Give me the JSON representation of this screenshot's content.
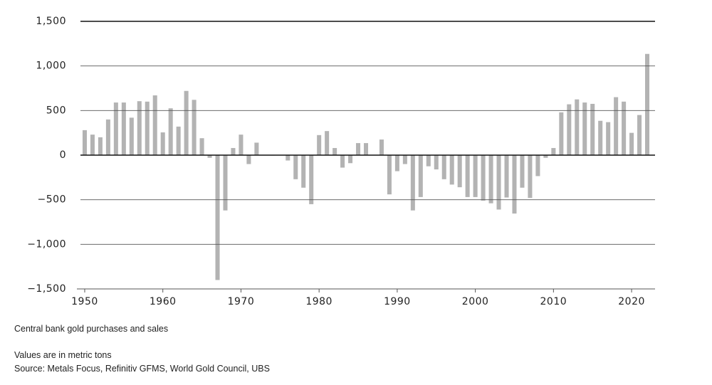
{
  "chart_data": {
    "type": "bar",
    "subtitle": "Central bank gold purchases and sales",
    "note": "Values are in metric tons",
    "source": "Source: Metals Focus, Refinitiv GFMS, World Gold Council, UBS",
    "color": "#b3b3b3",
    "x": [
      1950,
      1951,
      1952,
      1953,
      1954,
      1955,
      1956,
      1957,
      1958,
      1959,
      1960,
      1961,
      1962,
      1963,
      1964,
      1965,
      1966,
      1967,
      1968,
      1969,
      1970,
      1971,
      1972,
      1973,
      1974,
      1975,
      1976,
      1977,
      1978,
      1979,
      1980,
      1981,
      1982,
      1983,
      1984,
      1985,
      1986,
      1987,
      1988,
      1989,
      1990,
      1991,
      1992,
      1993,
      1994,
      1995,
      1996,
      1997,
      1998,
      1999,
      2000,
      2001,
      2002,
      2003,
      2004,
      2005,
      2006,
      2007,
      2008,
      2009,
      2010,
      2011,
      2012,
      2013,
      2014,
      2015,
      2016,
      2017,
      2018,
      2019,
      2020,
      2021,
      2022
    ],
    "values": [
      280,
      230,
      200,
      400,
      590,
      590,
      420,
      605,
      600,
      670,
      255,
      525,
      320,
      720,
      620,
      190,
      -30,
      -1400,
      -620,
      80,
      230,
      -100,
      140,
      0,
      -5,
      0,
      -60,
      -270,
      -365,
      -550,
      225,
      270,
      80,
      -140,
      -90,
      135,
      135,
      0,
      175,
      -440,
      -180,
      -100,
      -620,
      -470,
      -125,
      -160,
      -270,
      -330,
      -360,
      -470,
      -470,
      -510,
      -540,
      -610,
      -475,
      -655,
      -365,
      -480,
      -235,
      -30,
      80,
      480,
      570,
      625,
      590,
      575,
      385,
      370,
      650,
      600,
      250,
      450,
      1135
    ],
    "xlim": [
      1949,
      2023
    ],
    "xticks": [
      1950,
      1960,
      1970,
      1980,
      1990,
      2000,
      2010,
      2020
    ],
    "ylim": [
      -1500,
      1500
    ],
    "yticks": [
      {
        "value": -1500,
        "label": "−1,500"
      },
      {
        "value": -1000,
        "label": "−1,000"
      },
      {
        "value": -500,
        "label": "−500"
      },
      0,
      500,
      {
        "value": 1000,
        "label": "1,000"
      },
      {
        "value": 1500,
        "label": "1,500"
      }
    ],
    "grid": true
  }
}
